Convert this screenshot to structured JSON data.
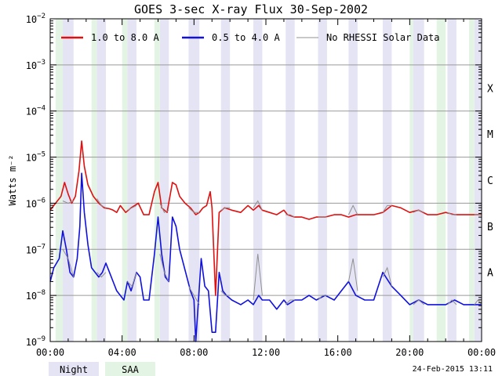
{
  "chart_data": {
    "type": "line",
    "title": "GOES 3-sec X-ray Flux   30-Sep-2002",
    "ylabel": "Watts m⁻²",
    "xlabel": "",
    "y_scale": "log",
    "ylim_exp": [
      -9,
      -2
    ],
    "y_tick_exponents": [
      -9,
      -8,
      -7,
      -6,
      -5,
      -4,
      -3,
      -2
    ],
    "xlim_hours": [
      0,
      24
    ],
    "x_ticks": [
      {
        "hour": 0,
        "label": "00:00"
      },
      {
        "hour": 4,
        "label": "04:00"
      },
      {
        "hour": 8,
        "label": "08:00"
      },
      {
        "hour": 12,
        "label": "12:00"
      },
      {
        "hour": 16,
        "label": "16:00"
      },
      {
        "hour": 20,
        "label": "20:00"
      },
      {
        "hour": 24,
        "label": "00:00"
      }
    ],
    "gridlines_exp": [
      -8,
      -7,
      -6,
      -5,
      -4,
      -3
    ],
    "flare_classes": [
      {
        "label": "A",
        "exp": -8
      },
      {
        "label": "B",
        "exp": -7
      },
      {
        "label": "C",
        "exp": -6
      },
      {
        "label": "M",
        "exp": -5
      },
      {
        "label": "X",
        "exp": -4
      }
    ],
    "legend": [
      {
        "label": "1.0 to 8.0 A",
        "color": "#e01010"
      },
      {
        "label": "0.5 to 4.0 A",
        "color": "#1010e0"
      },
      {
        "label": "No RHESSI Solar Data",
        "color": "#909090"
      }
    ],
    "night_intervals": [
      [
        0.7,
        1.3
      ],
      [
        2.6,
        3.1
      ],
      [
        4.3,
        4.8
      ],
      [
        6.1,
        6.6
      ],
      [
        7.7,
        8.3
      ],
      [
        9.5,
        10.0
      ],
      [
        11.3,
        11.8
      ],
      [
        13.1,
        13.6
      ],
      [
        14.9,
        15.4
      ],
      [
        16.6,
        17.1
      ],
      [
        18.5,
        19.0
      ],
      [
        20.2,
        20.8
      ],
      [
        22.1,
        22.6
      ],
      [
        23.6,
        24.0
      ]
    ],
    "saa_intervals": [
      [
        0.3,
        0.7
      ],
      [
        2.3,
        2.6
      ],
      [
        4.0,
        4.3
      ],
      [
        5.8,
        6.1
      ],
      [
        20.0,
        20.2
      ],
      [
        21.5,
        22.0
      ],
      [
        23.3,
        23.6
      ]
    ],
    "series": [
      {
        "name": "1.0 to 8.0 A",
        "color": "#e01010",
        "points": [
          [
            0,
            -6.15
          ],
          [
            0.3,
            -6.0
          ],
          [
            0.6,
            -5.85
          ],
          [
            0.8,
            -5.55
          ],
          [
            1.0,
            -5.8
          ],
          [
            1.2,
            -6.0
          ],
          [
            1.4,
            -5.85
          ],
          [
            1.6,
            -5.3
          ],
          [
            1.75,
            -4.65
          ],
          [
            1.9,
            -5.2
          ],
          [
            2.1,
            -5.6
          ],
          [
            2.4,
            -5.85
          ],
          [
            2.7,
            -6.0
          ],
          [
            3.0,
            -6.1
          ],
          [
            3.3,
            -6.12
          ],
          [
            3.5,
            -6.15
          ],
          [
            3.7,
            -6.2
          ],
          [
            3.9,
            -6.05
          ],
          [
            4.2,
            -6.2
          ],
          [
            4.5,
            -6.1
          ],
          [
            4.9,
            -6.0
          ],
          [
            5.2,
            -6.25
          ],
          [
            5.5,
            -6.25
          ],
          [
            5.8,
            -5.75
          ],
          [
            6.0,
            -5.55
          ],
          [
            6.2,
            -6.1
          ],
          [
            6.5,
            -6.2
          ],
          [
            6.8,
            -5.55
          ],
          [
            7.0,
            -5.6
          ],
          [
            7.2,
            -5.85
          ],
          [
            7.5,
            -6.0
          ],
          [
            7.8,
            -6.1
          ],
          [
            8.1,
            -6.25
          ],
          [
            8.3,
            -6.2
          ],
          [
            8.5,
            -6.1
          ],
          [
            8.7,
            -6.05
          ],
          [
            8.9,
            -5.75
          ],
          [
            9.0,
            -6.1
          ],
          [
            9.2,
            -8.0
          ],
          [
            9.4,
            -6.2
          ],
          [
            9.7,
            -6.1
          ],
          [
            10.1,
            -6.15
          ],
          [
            10.6,
            -6.2
          ],
          [
            11.0,
            -6.05
          ],
          [
            11.3,
            -6.15
          ],
          [
            11.6,
            -6.05
          ],
          [
            11.8,
            -6.15
          ],
          [
            12.2,
            -6.2
          ],
          [
            12.6,
            -6.25
          ],
          [
            13.0,
            -6.15
          ],
          [
            13.2,
            -6.25
          ],
          [
            13.6,
            -6.3
          ],
          [
            14.0,
            -6.3
          ],
          [
            14.4,
            -6.35
          ],
          [
            14.8,
            -6.3
          ],
          [
            15.3,
            -6.3
          ],
          [
            15.8,
            -6.25
          ],
          [
            16.2,
            -6.25
          ],
          [
            16.6,
            -6.3
          ],
          [
            17.0,
            -6.25
          ],
          [
            17.5,
            -6.25
          ],
          [
            18.0,
            -6.25
          ],
          [
            18.5,
            -6.2
          ],
          [
            19.0,
            -6.05
          ],
          [
            19.5,
            -6.1
          ],
          [
            20.0,
            -6.2
          ],
          [
            20.5,
            -6.15
          ],
          [
            21.0,
            -6.25
          ],
          [
            21.5,
            -6.25
          ],
          [
            22.0,
            -6.2
          ],
          [
            22.5,
            -6.25
          ],
          [
            23.0,
            -6.25
          ],
          [
            23.5,
            -6.25
          ],
          [
            24.0,
            -6.25
          ]
        ]
      },
      {
        "name": "0.5 to 4.0 A",
        "color": "#1010e0",
        "points": [
          [
            0,
            -7.7
          ],
          [
            0.2,
            -7.4
          ],
          [
            0.5,
            -7.2
          ],
          [
            0.7,
            -6.6
          ],
          [
            0.9,
            -7.0
          ],
          [
            1.1,
            -7.5
          ],
          [
            1.3,
            -7.6
          ],
          [
            1.5,
            -7.2
          ],
          [
            1.65,
            -6.5
          ],
          [
            1.75,
            -5.35
          ],
          [
            1.9,
            -6.2
          ],
          [
            2.1,
            -6.9
          ],
          [
            2.3,
            -7.4
          ],
          [
            2.5,
            -7.5
          ],
          [
            2.7,
            -7.6
          ],
          [
            2.9,
            -7.5
          ],
          [
            3.1,
            -7.3
          ],
          [
            3.3,
            -7.5
          ],
          [
            3.5,
            -7.7
          ],
          [
            3.7,
            -7.9
          ],
          [
            3.9,
            -8.0
          ],
          [
            4.1,
            -8.1
          ],
          [
            4.3,
            -7.7
          ],
          [
            4.5,
            -7.9
          ],
          [
            4.8,
            -7.5
          ],
          [
            5.0,
            -7.6
          ],
          [
            5.2,
            -8.1
          ],
          [
            5.5,
            -8.1
          ],
          [
            5.8,
            -7.1
          ],
          [
            6.0,
            -6.3
          ],
          [
            6.2,
            -7.1
          ],
          [
            6.4,
            -7.6
          ],
          [
            6.6,
            -7.7
          ],
          [
            6.8,
            -6.3
          ],
          [
            7.0,
            -6.5
          ],
          [
            7.2,
            -7.0
          ],
          [
            7.4,
            -7.3
          ],
          [
            7.6,
            -7.6
          ],
          [
            7.8,
            -7.9
          ],
          [
            8.0,
            -8.1
          ],
          [
            8.1,
            -9.0
          ],
          [
            8.2,
            -8.4
          ],
          [
            8.4,
            -7.2
          ],
          [
            8.6,
            -7.8
          ],
          [
            8.8,
            -7.9
          ],
          [
            9.0,
            -8.8
          ],
          [
            9.2,
            -8.8
          ],
          [
            9.4,
            -7.5
          ],
          [
            9.6,
            -7.9
          ],
          [
            9.8,
            -8.0
          ],
          [
            10.1,
            -8.1
          ],
          [
            10.6,
            -8.2
          ],
          [
            11.0,
            -8.1
          ],
          [
            11.3,
            -8.2
          ],
          [
            11.6,
            -8.0
          ],
          [
            11.8,
            -8.1
          ],
          [
            12.2,
            -8.1
          ],
          [
            12.6,
            -8.3
          ],
          [
            13.0,
            -8.1
          ],
          [
            13.2,
            -8.2
          ],
          [
            13.6,
            -8.1
          ],
          [
            14.0,
            -8.1
          ],
          [
            14.4,
            -8.0
          ],
          [
            14.8,
            -8.1
          ],
          [
            15.3,
            -8.0
          ],
          [
            15.8,
            -8.1
          ],
          [
            16.2,
            -7.9
          ],
          [
            16.6,
            -7.7
          ],
          [
            17.0,
            -8.0
          ],
          [
            17.5,
            -8.1
          ],
          [
            18.0,
            -8.1
          ],
          [
            18.5,
            -7.5
          ],
          [
            19.0,
            -7.8
          ],
          [
            19.5,
            -8.0
          ],
          [
            20.0,
            -8.2
          ],
          [
            20.5,
            -8.1
          ],
          [
            21.0,
            -8.2
          ],
          [
            21.5,
            -8.2
          ],
          [
            22.0,
            -8.2
          ],
          [
            22.5,
            -8.1
          ],
          [
            23.0,
            -8.2
          ],
          [
            23.5,
            -8.2
          ],
          [
            24.0,
            -8.2
          ]
        ]
      },
      {
        "name": "No RHESSI Solar Data",
        "color": "#909090",
        "segments": [
          [
            [
              0.7,
              -5.95
            ],
            [
              1.0,
              -6.0
            ],
            [
              1.3,
              -5.95
            ]
          ],
          [
            [
              2.6,
              -5.9
            ],
            [
              2.85,
              -6.05
            ],
            [
              3.1,
              -6.1
            ]
          ],
          [
            [
              4.3,
              -6.15
            ],
            [
              4.55,
              -6.1
            ],
            [
              4.8,
              -6.05
            ]
          ],
          [
            [
              6.1,
              -6.0
            ],
            [
              6.35,
              -6.2
            ],
            [
              6.6,
              -6.15
            ]
          ],
          [
            [
              7.7,
              -6.1
            ],
            [
              8.0,
              -6.2
            ],
            [
              8.3,
              -6.2
            ]
          ],
          [
            [
              9.5,
              -6.15
            ],
            [
              9.75,
              -6.1
            ],
            [
              10.0,
              -6.1
            ]
          ],
          [
            [
              11.3,
              -6.1
            ],
            [
              11.55,
              -5.95
            ],
            [
              11.8,
              -6.15
            ]
          ],
          [
            [
              13.1,
              -6.25
            ],
            [
              13.35,
              -6.25
            ],
            [
              13.6,
              -6.3
            ]
          ],
          [
            [
              14.9,
              -6.3
            ],
            [
              15.15,
              -6.3
            ],
            [
              15.4,
              -6.3
            ]
          ],
          [
            [
              16.6,
              -6.25
            ],
            [
              16.85,
              -6.05
            ],
            [
              17.1,
              -6.25
            ]
          ],
          [
            [
              18.5,
              -6.2
            ],
            [
              18.75,
              -6.05
            ],
            [
              19.0,
              -6.05
            ]
          ],
          [
            [
              20.2,
              -6.2
            ],
            [
              20.5,
              -6.15
            ],
            [
              20.8,
              -6.2
            ]
          ],
          [
            [
              22.1,
              -6.2
            ],
            [
              22.35,
              -6.25
            ],
            [
              22.6,
              -6.25
            ]
          ],
          [
            [
              23.6,
              -6.25
            ],
            [
              23.8,
              -6.25
            ],
            [
              24.0,
              -6.25
            ]
          ],
          [
            [
              0.7,
              -7.0
            ],
            [
              1.0,
              -7.2
            ],
            [
              1.3,
              -7.6
            ]
          ],
          [
            [
              2.6,
              -7.5
            ],
            [
              2.85,
              -7.6
            ],
            [
              3.1,
              -7.5
            ]
          ],
          [
            [
              4.3,
              -7.7
            ],
            [
              4.55,
              -7.8
            ],
            [
              4.8,
              -7.5
            ]
          ],
          [
            [
              6.1,
              -7.1
            ],
            [
              6.35,
              -7.5
            ],
            [
              6.6,
              -7.7
            ]
          ],
          [
            [
              7.7,
              -7.8
            ],
            [
              8.0,
              -8.0
            ],
            [
              8.3,
              -8.2
            ]
          ],
          [
            [
              9.5,
              -7.9
            ],
            [
              9.75,
              -8.0
            ],
            [
              10.0,
              -8.0
            ]
          ],
          [
            [
              11.3,
              -8.1
            ],
            [
              11.55,
              -7.1
            ],
            [
              11.8,
              -8.0
            ]
          ],
          [
            [
              13.1,
              -8.2
            ],
            [
              13.35,
              -8.1
            ],
            [
              13.6,
              -8.1
            ]
          ],
          [
            [
              14.9,
              -8.1
            ],
            [
              15.15,
              -8.0
            ],
            [
              15.4,
              -8.0
            ]
          ],
          [
            [
              16.6,
              -7.7
            ],
            [
              16.85,
              -7.2
            ],
            [
              17.1,
              -7.9
            ]
          ],
          [
            [
              18.5,
              -7.6
            ],
            [
              18.75,
              -7.4
            ],
            [
              19.0,
              -7.8
            ]
          ],
          [
            [
              20.2,
              -8.2
            ],
            [
              20.5,
              -8.1
            ],
            [
              20.8,
              -8.2
            ]
          ],
          [
            [
              22.1,
              -8.2
            ],
            [
              22.35,
              -8.1
            ],
            [
              22.6,
              -8.2
            ]
          ],
          [
            [
              23.6,
              -8.2
            ],
            [
              23.8,
              -8.1
            ],
            [
              24.0,
              -8.2
            ]
          ]
        ]
      }
    ],
    "bottom_legend": [
      {
        "label": "Night",
        "color": "#e4e4f4"
      },
      {
        "label": "SAA",
        "color": "#e4f4e4"
      }
    ],
    "timestamp": "24-Feb-2015 13:11"
  }
}
